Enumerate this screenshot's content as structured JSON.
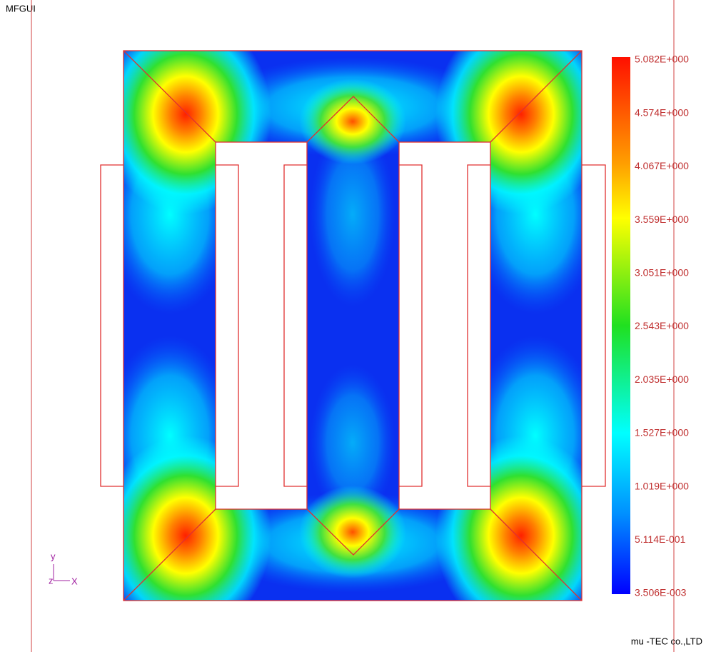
{
  "header": {
    "title": "MFGUI"
  },
  "colorbar": {
    "labels": [
      "5.082E+000",
      "4.574E+000",
      "4.067E+000",
      "3.559E+000",
      "3.051E+000",
      "2.543E+000",
      "2.035E+000",
      "1.527E+000",
      "1.019E+000",
      "5.114E-001",
      "3.506E-003"
    ]
  },
  "axes": {
    "y": "y",
    "z": "z",
    "x": "X"
  },
  "footer": {
    "company": "mu -TEC co.,LTD"
  }
}
